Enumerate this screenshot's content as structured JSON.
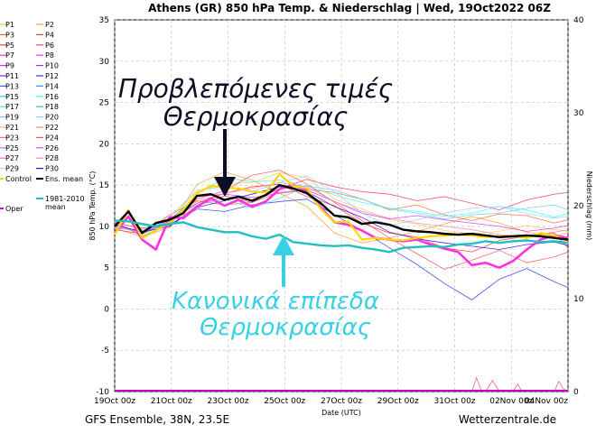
{
  "chart_data": {
    "type": "line",
    "title": "Athens  (GR)  850 hPa Temp. & Niederschlag | Wed, 19Oct2022 06Z",
    "xlabel": "Date (UTC)",
    "ylabel": "850 hPa Temp. (°C)",
    "ylabel_right": "Niederschlag (mm)",
    "ylim": [
      -10,
      35
    ],
    "ylim_right": [
      0,
      40
    ],
    "yticks": [
      -10,
      -5,
      0,
      5,
      10,
      15,
      20,
      25,
      30,
      35
    ],
    "yticks_right": [
      0,
      10,
      20,
      30,
      40
    ],
    "x_tick_labels": [
      "19Oct 00z",
      "21Oct 00z",
      "23Oct 00z",
      "25Oct 00z",
      "27Oct 00z",
      "29Oct 00z",
      "31Oct 00z",
      "02Nov 00z",
      "04Nov 00z"
    ],
    "x_hours_range": [
      0,
      396
    ],
    "grid": true,
    "legend_position": "left",
    "colors": {
      "ens_mean": "#000000",
      "control": "#ffd700",
      "clim": "#20c0c0",
      "oper": "#cc00cc",
      "highlight": "#ff33dd"
    },
    "series": [
      {
        "name": "Ens. mean",
        "x_hours": [
          0,
          12,
          24,
          36,
          48,
          60,
          72,
          84,
          96,
          108,
          120,
          132,
          144,
          156,
          168,
          180,
          192,
          204,
          216,
          228,
          240,
          252,
          264,
          276,
          288,
          300,
          312,
          324,
          336,
          348,
          360,
          372,
          384,
          396
        ],
        "values": [
          10,
          11.8,
          9.2,
          10.4,
          10.8,
          11.6,
          13.7,
          13.9,
          13.2,
          13.6,
          13.1,
          13.8,
          15.0,
          14.6,
          14.0,
          12.8,
          11.3,
          11.1,
          10.3,
          10.5,
          10.2,
          9.6,
          9.4,
          9.3,
          9.1,
          9.0,
          9.1,
          8.9,
          8.7,
          8.8,
          8.9,
          8.8,
          8.6,
          8.4
        ]
      },
      {
        "name": "Control",
        "x_hours": [
          0,
          12,
          24,
          36,
          48,
          60,
          72,
          84,
          96,
          108,
          120,
          132,
          144,
          156,
          168,
          180,
          192,
          204,
          216,
          228,
          240,
          252,
          264,
          276,
          288,
          300,
          312,
          324,
          336,
          348,
          360,
          372,
          384,
          396
        ],
        "values": [
          9,
          12,
          8.6,
          9.5,
          10.5,
          12,
          14.0,
          14.9,
          14.7,
          14.6,
          14.2,
          14.1,
          16.3,
          14.9,
          14.6,
          12.1,
          10.5,
          10.6,
          8.4,
          8.6,
          8.4,
          8.3,
          8.6,
          8.8,
          8.9,
          9.0,
          8.9,
          8.7,
          8.8,
          8.8,
          8.6,
          9.2,
          8.9,
          8.2
        ]
      },
      {
        "name": "1981-2010 mean",
        "x_hours": [
          0,
          12,
          24,
          36,
          48,
          60,
          72,
          84,
          96,
          108,
          120,
          132,
          144,
          156,
          168,
          180,
          192,
          204,
          216,
          228,
          240,
          252,
          264,
          276,
          288,
          300,
          312,
          324,
          336,
          348,
          360,
          372,
          384,
          396
        ],
        "values": [
          10.7,
          10.6,
          10.3,
          10.0,
          10.3,
          10.5,
          9.9,
          9.6,
          9.3,
          9.3,
          8.8,
          8.5,
          9.0,
          8.1,
          7.9,
          7.7,
          7.6,
          7.7,
          7.4,
          7.2,
          6.9,
          7.4,
          7.5,
          7.6,
          7.5,
          7.8,
          7.9,
          8.2,
          8.0,
          8.2,
          8.3,
          8.1,
          8.2,
          8.0
        ]
      },
      {
        "name": "P26",
        "x_hours": [
          0,
          12,
          24,
          36,
          48,
          60,
          72,
          84,
          96,
          108,
          120,
          132,
          144,
          156,
          168,
          180,
          192,
          204,
          216,
          228,
          240,
          252,
          264,
          276,
          288,
          300,
          312,
          324,
          336,
          348,
          360,
          372,
          384,
          396
        ],
        "values": [
          9.2,
          11.2,
          8.4,
          7.2,
          11.1,
          11.0,
          12.4,
          13.4,
          12.5,
          13.2,
          12.4,
          13.0,
          14.5,
          15.0,
          14.3,
          12.3,
          10.5,
          10.2,
          9.5,
          8.6,
          8.4,
          8.2,
          8.4,
          7.8,
          7.3,
          6.9,
          5.3,
          5.6,
          5.0,
          5.8,
          7.2,
          8.4,
          8.9,
          8.6
        ]
      },
      {
        "name": "P1",
        "x_hours": [
          0,
          24,
          48,
          72,
          96,
          120,
          144,
          168,
          192,
          216,
          240,
          264,
          288,
          312,
          336,
          360,
          384,
          396
        ],
        "values": [
          10.5,
          9.7,
          11.0,
          14.2,
          15.2,
          15.3,
          16.5,
          15.9,
          13.3,
          12.1,
          10.8,
          10.3,
          9.5,
          9.1,
          9.4,
          10.1,
          9.6,
          9.4
        ]
      },
      {
        "name": "P2",
        "x_hours": [
          0,
          24,
          48,
          72,
          96,
          120,
          144,
          168,
          192,
          216,
          240,
          264,
          288,
          312,
          336,
          360,
          384,
          396
        ],
        "values": [
          9.8,
          8.7,
          9.9,
          15.1,
          16.6,
          15.6,
          14.0,
          12.4,
          9.2,
          8.0,
          8.6,
          9.4,
          10.3,
          11.2,
          10.4,
          9.3,
          8.8,
          9.2
        ]
      },
      {
        "name": "P3",
        "x_hours": [
          0,
          24,
          48,
          72,
          96,
          120,
          144,
          168,
          192,
          216,
          240,
          264,
          288,
          312,
          336,
          360,
          384,
          396
        ],
        "values": [
          10.2,
          9.2,
          11.4,
          13.1,
          12.6,
          12.9,
          14.1,
          14.5,
          14.1,
          13.3,
          12.0,
          12.6,
          11.4,
          10.7,
          11.5,
          11.3,
          10.4,
          10.8
        ]
      },
      {
        "name": "P4",
        "x_hours": [
          0,
          24,
          48,
          72,
          96,
          120,
          144,
          168,
          192,
          216,
          240,
          264,
          288,
          312,
          336,
          360,
          384,
          396
        ],
        "values": [
          9.6,
          9.1,
          10.7,
          12.8,
          14.0,
          14.8,
          15.1,
          13.6,
          12.5,
          10.4,
          9.2,
          8.7,
          7.4,
          6.9,
          8.3,
          8.8,
          9.2,
          7.4
        ]
      },
      {
        "name": "P5",
        "x_hours": [
          0,
          24,
          48,
          72,
          96,
          120,
          144,
          168,
          192,
          216,
          240,
          264,
          288,
          312,
          336,
          360,
          384,
          396
        ],
        "values": [
          10.4,
          9.8,
          10.1,
          12.5,
          13.7,
          12.9,
          14.6,
          15.7,
          14.8,
          14.2,
          13.9,
          13.1,
          13.6,
          12.8,
          12.0,
          13.2,
          13.9,
          14.1
        ]
      },
      {
        "name": "P9",
        "x_hours": [
          0,
          24,
          48,
          72,
          96,
          120,
          144,
          168,
          192,
          216,
          240,
          264,
          288,
          312,
          336,
          360,
          384,
          396
        ],
        "values": [
          9.9,
          9.3,
          10.8,
          13.6,
          13.9,
          13.5,
          14.0,
          14.4,
          13.0,
          11.6,
          10.9,
          11.3,
          10.8,
          10.4,
          10.0,
          9.4,
          9.8,
          10.1
        ]
      },
      {
        "name": "P12",
        "x_hours": [
          0,
          24,
          48,
          72,
          96,
          120,
          144,
          168,
          192,
          216,
          240,
          264,
          288,
          312,
          336,
          360,
          384,
          396
        ],
        "values": [
          10.1,
          9.4,
          10.2,
          12.1,
          11.8,
          12.6,
          13.0,
          13.3,
          11.4,
          9.5,
          7.4,
          5.4,
          3.1,
          1.1,
          3.6,
          4.9,
          3.3,
          2.6
        ]
      },
      {
        "name": "P16",
        "x_hours": [
          0,
          24,
          48,
          72,
          96,
          120,
          144,
          168,
          192,
          216,
          240,
          264,
          288,
          312,
          336,
          360,
          384,
          396
        ],
        "values": [
          10.3,
          9.0,
          10.6,
          13.9,
          15.9,
          15.4,
          15.6,
          14.9,
          13.8,
          12.9,
          12.2,
          11.8,
          11.2,
          11.6,
          12.4,
          12.0,
          11.1,
          11.6
        ]
      },
      {
        "name": "P19",
        "x_hours": [
          0,
          24,
          48,
          72,
          96,
          120,
          144,
          168,
          192,
          216,
          240,
          264,
          288,
          312,
          336,
          360,
          384,
          396
        ],
        "values": [
          10.0,
          9.5,
          10.9,
          12.6,
          13.3,
          12.2,
          13.4,
          14.9,
          14.4,
          13.3,
          12.1,
          11.6,
          10.9,
          11.4,
          11.6,
          12.2,
          12.6,
          12.0
        ]
      },
      {
        "name": "P20",
        "x_hours": [
          0,
          24,
          48,
          72,
          96,
          120,
          144,
          168,
          192,
          216,
          240,
          264,
          288,
          312,
          336,
          360,
          384,
          396
        ],
        "values": [
          9.7,
          9.6,
          11.2,
          14.4,
          14.8,
          14.2,
          15.3,
          16.1,
          14.2,
          11.6,
          10.1,
          10.8,
          11.6,
          12.2,
          12.4,
          11.5,
          11.0,
          11.2
        ]
      },
      {
        "name": "P24",
        "x_hours": [
          0,
          24,
          48,
          72,
          96,
          120,
          144,
          168,
          192,
          216,
          240,
          264,
          288,
          312,
          336,
          360,
          384,
          396
        ],
        "values": [
          10.6,
          8.8,
          10.3,
          13.3,
          14.3,
          16.2,
          16.8,
          15.1,
          12.9,
          10.7,
          8.6,
          6.7,
          4.8,
          5.9,
          7.1,
          5.6,
          6.3,
          6.9
        ]
      },
      {
        "name": "P28",
        "x_hours": [
          0,
          24,
          48,
          72,
          96,
          120,
          144,
          168,
          192,
          216,
          240,
          264,
          288,
          312,
          336,
          360,
          384,
          396
        ],
        "values": [
          10.1,
          9.2,
          10.4,
          13.0,
          14.0,
          14.6,
          15.3,
          14.8,
          13.0,
          11.8,
          11.0,
          10.4,
          10.0,
          9.6,
          9.0,
          8.8,
          9.3,
          9.6
        ]
      },
      {
        "name": "P30",
        "x_hours": [
          0,
          24,
          48,
          72,
          96,
          120,
          144,
          168,
          192,
          216,
          240,
          264,
          288,
          312,
          336,
          360,
          384,
          396
        ],
        "values": [
          10.2,
          9.3,
          10.0,
          12.3,
          13.1,
          13.9,
          14.8,
          14.2,
          12.4,
          11.1,
          9.3,
          8.5,
          8.0,
          7.6,
          7.2,
          7.8,
          8.1,
          7.7
        ]
      }
    ],
    "precip": [
      {
        "x_hours": [
          312,
          316,
          320,
          324,
          330,
          336
        ],
        "values": [
          0,
          1.5,
          0.2,
          0,
          1.2,
          0
        ]
      },
      {
        "x_hours": [
          348,
          352,
          356
        ],
        "values": [
          0,
          0.8,
          0
        ]
      },
      {
        "x_hours": [
          384,
          388,
          392,
          396
        ],
        "values": [
          0,
          1.1,
          0.3,
          0
        ]
      }
    ]
  },
  "legend": {
    "items": [
      {
        "label": "P1",
        "color": "#ffcc33"
      },
      {
        "label": "P2",
        "color": "#ff9933"
      },
      {
        "label": "P3",
        "color": "#ff6633"
      },
      {
        "label": "P4",
        "color": "#ff3333"
      },
      {
        "label": "P5",
        "color": "#ff3366"
      },
      {
        "label": "P6",
        "color": "#ff3399"
      },
      {
        "label": "P7",
        "color": "#ff33cc"
      },
      {
        "label": "P8",
        "color": "#ff33ff"
      },
      {
        "label": "P9",
        "color": "#cc33ff"
      },
      {
        "label": "P10",
        "color": "#9933ff"
      },
      {
        "label": "P11",
        "color": "#6633ff"
      },
      {
        "label": "P12",
        "color": "#3333ff"
      },
      {
        "label": "P13",
        "color": "#3366ff"
      },
      {
        "label": "P14",
        "color": "#3399ff"
      },
      {
        "label": "P15",
        "color": "#33ccff"
      },
      {
        "label": "P16",
        "color": "#33ffff"
      },
      {
        "label": "P17",
        "color": "#33ffcc"
      },
      {
        "label": "P18",
        "color": "#33cc99"
      },
      {
        "label": "P19",
        "color": "#66ccff"
      },
      {
        "label": "P20",
        "color": "#99ccff"
      },
      {
        "label": "P21",
        "color": "#ffb366"
      },
      {
        "label": "P22",
        "color": "#ff8c66"
      },
      {
        "label": "P23",
        "color": "#ff6680"
      },
      {
        "label": "P24",
        "color": "#ff5050"
      },
      {
        "label": "P25",
        "color": "#e066ff"
      },
      {
        "label": "P26",
        "color": "#d24dff"
      },
      {
        "label": "P27",
        "color": "#ff66b3"
      },
      {
        "label": "P28",
        "color": "#ff80cc"
      },
      {
        "label": "P29",
        "color": "#ffb3e6"
      },
      {
        "label": "P30",
        "color": "#3300cc"
      }
    ],
    "control": {
      "label": "Control",
      "color": "#ffd700"
    },
    "ens_mean": {
      "label": "Ens. mean",
      "color": "#000000"
    },
    "oper": {
      "label": "Oper",
      "color": "#cc00cc"
    },
    "clim": {
      "label": "1981-2010",
      "label2": "mean",
      "color": "#20c0c0"
    }
  },
  "annotations": {
    "forecast_line1": "Προβλεπόμενες τιμές",
    "forecast_line2": "Θερμοκρασίας",
    "normal_line1": "Κανονικά επίπεδα",
    "normal_line2": "Θερμοκρασίας"
  },
  "footer": {
    "left": "GFS Ensemble, 38N, 23.5E",
    "right": "Wetterzentrale.de"
  }
}
